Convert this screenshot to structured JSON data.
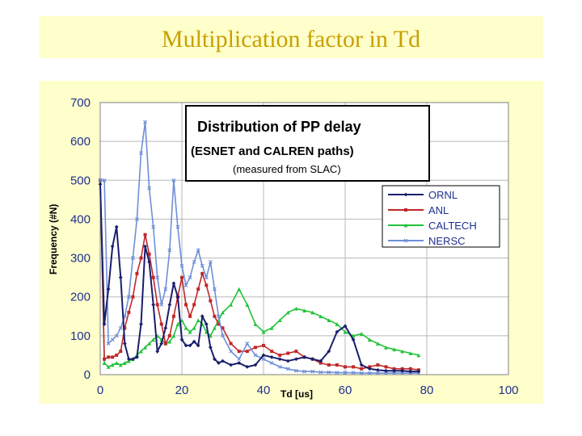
{
  "slide": {
    "title": "Multiplication factor in Td"
  },
  "chart_data": {
    "type": "line",
    "inset_title": {
      "line1": "Distribution of PP delay",
      "line2": "(ESNET and CALREN paths)",
      "line3": "(measured from SLAC)"
    },
    "xlabel": "Td  [us]",
    "ylabel": "Frequency (#N)",
    "xlim": [
      0,
      100
    ],
    "ylim": [
      0,
      700
    ],
    "xticks": [
      0,
      20,
      40,
      60,
      80,
      100
    ],
    "yticks": [
      0,
      100,
      200,
      300,
      400,
      500,
      600,
      700
    ],
    "grid": true,
    "legend_position": "right",
    "series": [
      {
        "name": "ORNL",
        "color": "#1a1f6b",
        "marker": "diamond",
        "x": [
          0,
          1,
          2,
          3,
          4,
          5,
          6,
          7,
          8,
          9,
          10,
          11,
          12,
          13,
          14,
          15,
          16,
          17,
          18,
          19,
          20,
          21,
          22,
          23,
          24,
          25,
          26,
          27,
          28,
          29,
          30,
          32,
          34,
          36,
          38,
          40,
          42,
          44,
          46,
          48,
          50,
          52,
          54,
          56,
          58,
          60,
          62,
          64,
          66,
          68,
          70,
          72,
          74,
          76,
          78
        ],
        "y": [
          490,
          130,
          220,
          330,
          380,
          250,
          80,
          40,
          40,
          45,
          130,
          330,
          290,
          180,
          60,
          80,
          120,
          180,
          235,
          200,
          90,
          75,
          75,
          85,
          75,
          150,
          130,
          70,
          40,
          30,
          35,
          25,
          30,
          20,
          25,
          50,
          45,
          40,
          35,
          40,
          45,
          40,
          35,
          60,
          110,
          125,
          90,
          25,
          15,
          12,
          10,
          10,
          10,
          8,
          8
        ]
      },
      {
        "name": "ANL",
        "color": "#c0282a",
        "marker": "square",
        "x": [
          0,
          1,
          2,
          3,
          4,
          5,
          6,
          7,
          8,
          9,
          10,
          11,
          12,
          13,
          14,
          15,
          16,
          17,
          18,
          19,
          20,
          21,
          22,
          23,
          24,
          25,
          26,
          27,
          28,
          29,
          30,
          32,
          34,
          36,
          38,
          40,
          42,
          44,
          46,
          48,
          50,
          52,
          54,
          56,
          58,
          60,
          62,
          64,
          66,
          68,
          70,
          72,
          74,
          76,
          78
        ],
        "y": [
          500,
          40,
          45,
          45,
          50,
          60,
          120,
          160,
          200,
          260,
          300,
          360,
          310,
          250,
          180,
          130,
          80,
          100,
          150,
          200,
          250,
          180,
          150,
          180,
          220,
          260,
          230,
          190,
          150,
          130,
          120,
          80,
          60,
          60,
          70,
          75,
          60,
          50,
          55,
          60,
          45,
          40,
          30,
          25,
          25,
          20,
          20,
          15,
          20,
          25,
          20,
          15,
          15,
          15,
          12
        ]
      },
      {
        "name": "CALTECH",
        "color": "#22c33a",
        "marker": "triangle",
        "x": [
          0,
          1,
          2,
          3,
          4,
          5,
          6,
          7,
          8,
          9,
          10,
          11,
          12,
          13,
          14,
          15,
          16,
          17,
          18,
          19,
          20,
          21,
          22,
          23,
          24,
          25,
          26,
          27,
          28,
          29,
          30,
          32,
          34,
          36,
          38,
          40,
          42,
          44,
          46,
          48,
          50,
          52,
          54,
          56,
          58,
          60,
          62,
          64,
          66,
          68,
          70,
          72,
          74,
          76,
          78
        ],
        "y": [
          500,
          30,
          20,
          25,
          30,
          25,
          30,
          35,
          40,
          50,
          60,
          70,
          80,
          90,
          100,
          90,
          80,
          85,
          100,
          130,
          140,
          120,
          110,
          120,
          140,
          130,
          110,
          100,
          120,
          140,
          160,
          180,
          220,
          180,
          130,
          110,
          120,
          140,
          160,
          170,
          165,
          160,
          150,
          140,
          130,
          110,
          100,
          105,
          90,
          80,
          70,
          65,
          60,
          55,
          50
        ]
      },
      {
        "name": "NERSC",
        "color": "#6f8fd8",
        "marker": "x",
        "x": [
          0,
          1,
          2,
          3,
          4,
          5,
          6,
          7,
          8,
          9,
          10,
          11,
          12,
          13,
          14,
          15,
          16,
          17,
          18,
          19,
          20,
          21,
          22,
          23,
          24,
          25,
          26,
          27,
          28,
          29,
          30,
          32,
          34,
          36,
          38,
          40,
          42,
          44,
          46,
          48,
          50,
          52,
          54,
          56,
          58,
          60,
          62,
          64,
          66,
          68,
          70,
          72,
          74,
          76,
          78
        ],
        "y": [
          500,
          500,
          80,
          90,
          100,
          120,
          150,
          200,
          300,
          400,
          570,
          650,
          480,
          380,
          250,
          180,
          220,
          320,
          500,
          380,
          280,
          230,
          250,
          290,
          320,
          280,
          250,
          290,
          220,
          150,
          100,
          60,
          40,
          80,
          50,
          40,
          30,
          20,
          15,
          10,
          8,
          8,
          6,
          6,
          5,
          5,
          5,
          4,
          4,
          4,
          4,
          4,
          4,
          4,
          4
        ]
      }
    ]
  }
}
